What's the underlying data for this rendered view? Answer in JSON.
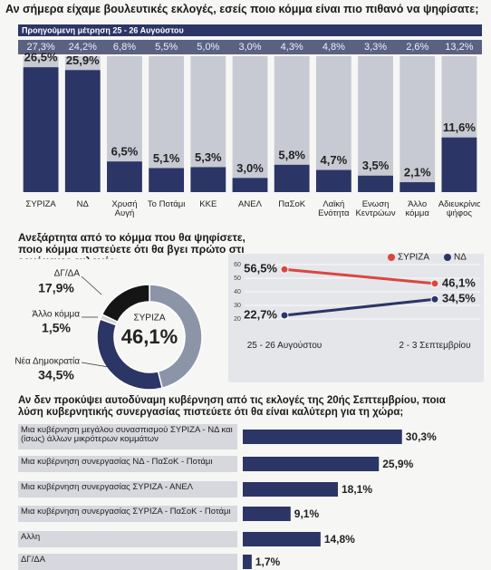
{
  "chart_data": [
    {
      "type": "bar",
      "title": "Αν σήμερα είχαμε βουλευτικές εκλογές, εσείς ποιο κόμμα είναι πιο πιθανό να ψηφίσατε;",
      "categories": [
        "ΣΥΡΙΖΑ",
        "ΝΔ",
        "Χρυσή Αυγή",
        "Το Ποτάμι",
        "ΚΚΕ",
        "ΑΝΕΛ",
        "ΠαΣοΚ",
        "Λαϊκή Ενότητα",
        "Ενωση Κεντρώων",
        "Άλλο κόμμα",
        "Αδιευκρίνιστη ψήφος"
      ],
      "values": [
        26.5,
        25.9,
        6.5,
        5.1,
        5.3,
        3.0,
        5.8,
        4.7,
        3.5,
        2.1,
        11.6
      ],
      "value_labels": [
        "26,5%",
        "25,9%",
        "6,5%",
        "5,1%",
        "5,3%",
        "3,0%",
        "5,8%",
        "4,7%",
        "3,5%",
        "2,1%",
        "11,6%"
      ],
      "color": "#2b3566",
      "previous": {
        "label": "Προηγούμενη μέτρηση 25 - 26 Αυγούστου",
        "values": [
          27.3,
          24.2,
          6.8,
          5.5,
          5.0,
          3.0,
          4.3,
          4.8,
          3.3,
          2.6,
          13.2
        ],
        "value_labels": [
          "27,3%",
          "24,2%",
          "6,8%",
          "5,5%",
          "5,0%",
          "3,0%",
          "4,3%",
          "4,8%",
          "3,3%",
          "2,6%",
          "13,2%"
        ]
      }
    },
    {
      "type": "pie",
      "title": "Ανεξάρτητα από το κόμμα που θα ψηφίσετε, ποιο κόμμα πιστεύετε ότι θα βγει πρώτο στις ερχόμενες εκλογές;",
      "categories": [
        "ΣΥΡΙΖΑ",
        "Νέα Δημοκρατία",
        "Άλλο κόμμα",
        "ΔΓ/ΔΑ"
      ],
      "values": [
        46.1,
        34.5,
        1.5,
        17.9
      ],
      "value_labels": [
        "46,1%",
        "34,5%",
        "1,5%",
        "17,9%"
      ],
      "colors": [
        "#8c95a8",
        "#2b3566",
        "#d4d4d4",
        "#151515"
      ]
    },
    {
      "type": "line",
      "categories": [
        "25 - 26 Αυγούστου",
        "2 - 3 Σεπτεμβρίου"
      ],
      "series": [
        {
          "name": "ΣΥΡΙΖΑ",
          "color": "#d9473f",
          "values": [
            56.5,
            46.1
          ],
          "value_labels": [
            "56,5%",
            "46,1%"
          ]
        },
        {
          "name": "ΝΔ",
          "color": "#2b3566",
          "values": [
            22.7,
            34.5
          ],
          "value_labels": [
            "22,7%",
            "34,5%"
          ]
        }
      ],
      "ylim": [
        20,
        60
      ],
      "yticks": [
        20,
        30,
        40,
        50,
        60
      ],
      "grid": true
    },
    {
      "type": "barh",
      "title": "Αν δεν προκύψει αυτοδύναμη κυβέρνηση από τις εκλογές της 20ής Σεπτεμβρίου, ποια λύση κυβερνητικής συνεργασίας πιστεύετε ότι θα είναι καλύτερη για τη χώρα;",
      "categories": [
        "Μια κυβέρνηση μεγάλου συνασπισμού ΣΥΡΙΖΑ - ΝΔ και (ίσως) άλλων μικρότερων κομμάτων",
        "Μια κυβέρνηση συνεργασίας ΝΔ - ΠαΣοΚ - Ποτάμι",
        "Μια κυβέρνηση συνεργασίας ΣΥΡΙΖΑ - ΑΝΕΛ",
        "Μια κυβέρνηση συνεργασίας ΣΥΡΙΖΑ - ΠαΣοΚ - Ποτάμι",
        "Αλλη",
        "ΔΓ/ΔΑ"
      ],
      "values": [
        30.3,
        25.9,
        18.1,
        9.1,
        14.8,
        1.7
      ],
      "value_labels": [
        "30,3%",
        "25,9%",
        "18,1%",
        "9,1%",
        "14,8%",
        "1,7%"
      ],
      "color": "#2b3566"
    }
  ]
}
